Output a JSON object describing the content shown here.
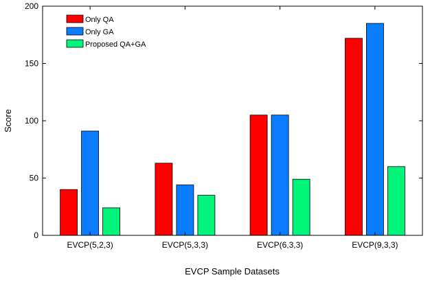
{
  "chart_data": {
    "type": "bar",
    "xlabel": "EVCP Sample Datasets",
    "ylabel": "Score",
    "ylim": [
      0,
      200
    ],
    "yticks": [
      0,
      50,
      100,
      150,
      200
    ],
    "categories": [
      "EVCP(5,2,3)",
      "EVCP(5,3,3)",
      "EVCP(6,3,3)",
      "EVCP(9,3,3)"
    ],
    "series": [
      {
        "name": "Only QA",
        "color": "#ff0000",
        "values": [
          40,
          63,
          105,
          172
        ]
      },
      {
        "name": "Only GA",
        "color": "#0a7cff",
        "values": [
          91,
          44,
          105,
          185
        ]
      },
      {
        "name": "Proposed QA+GA",
        "color": "#00f57a",
        "values": [
          24,
          35,
          49,
          60
        ]
      }
    ],
    "legend_position": "top-left",
    "grid": false
  }
}
